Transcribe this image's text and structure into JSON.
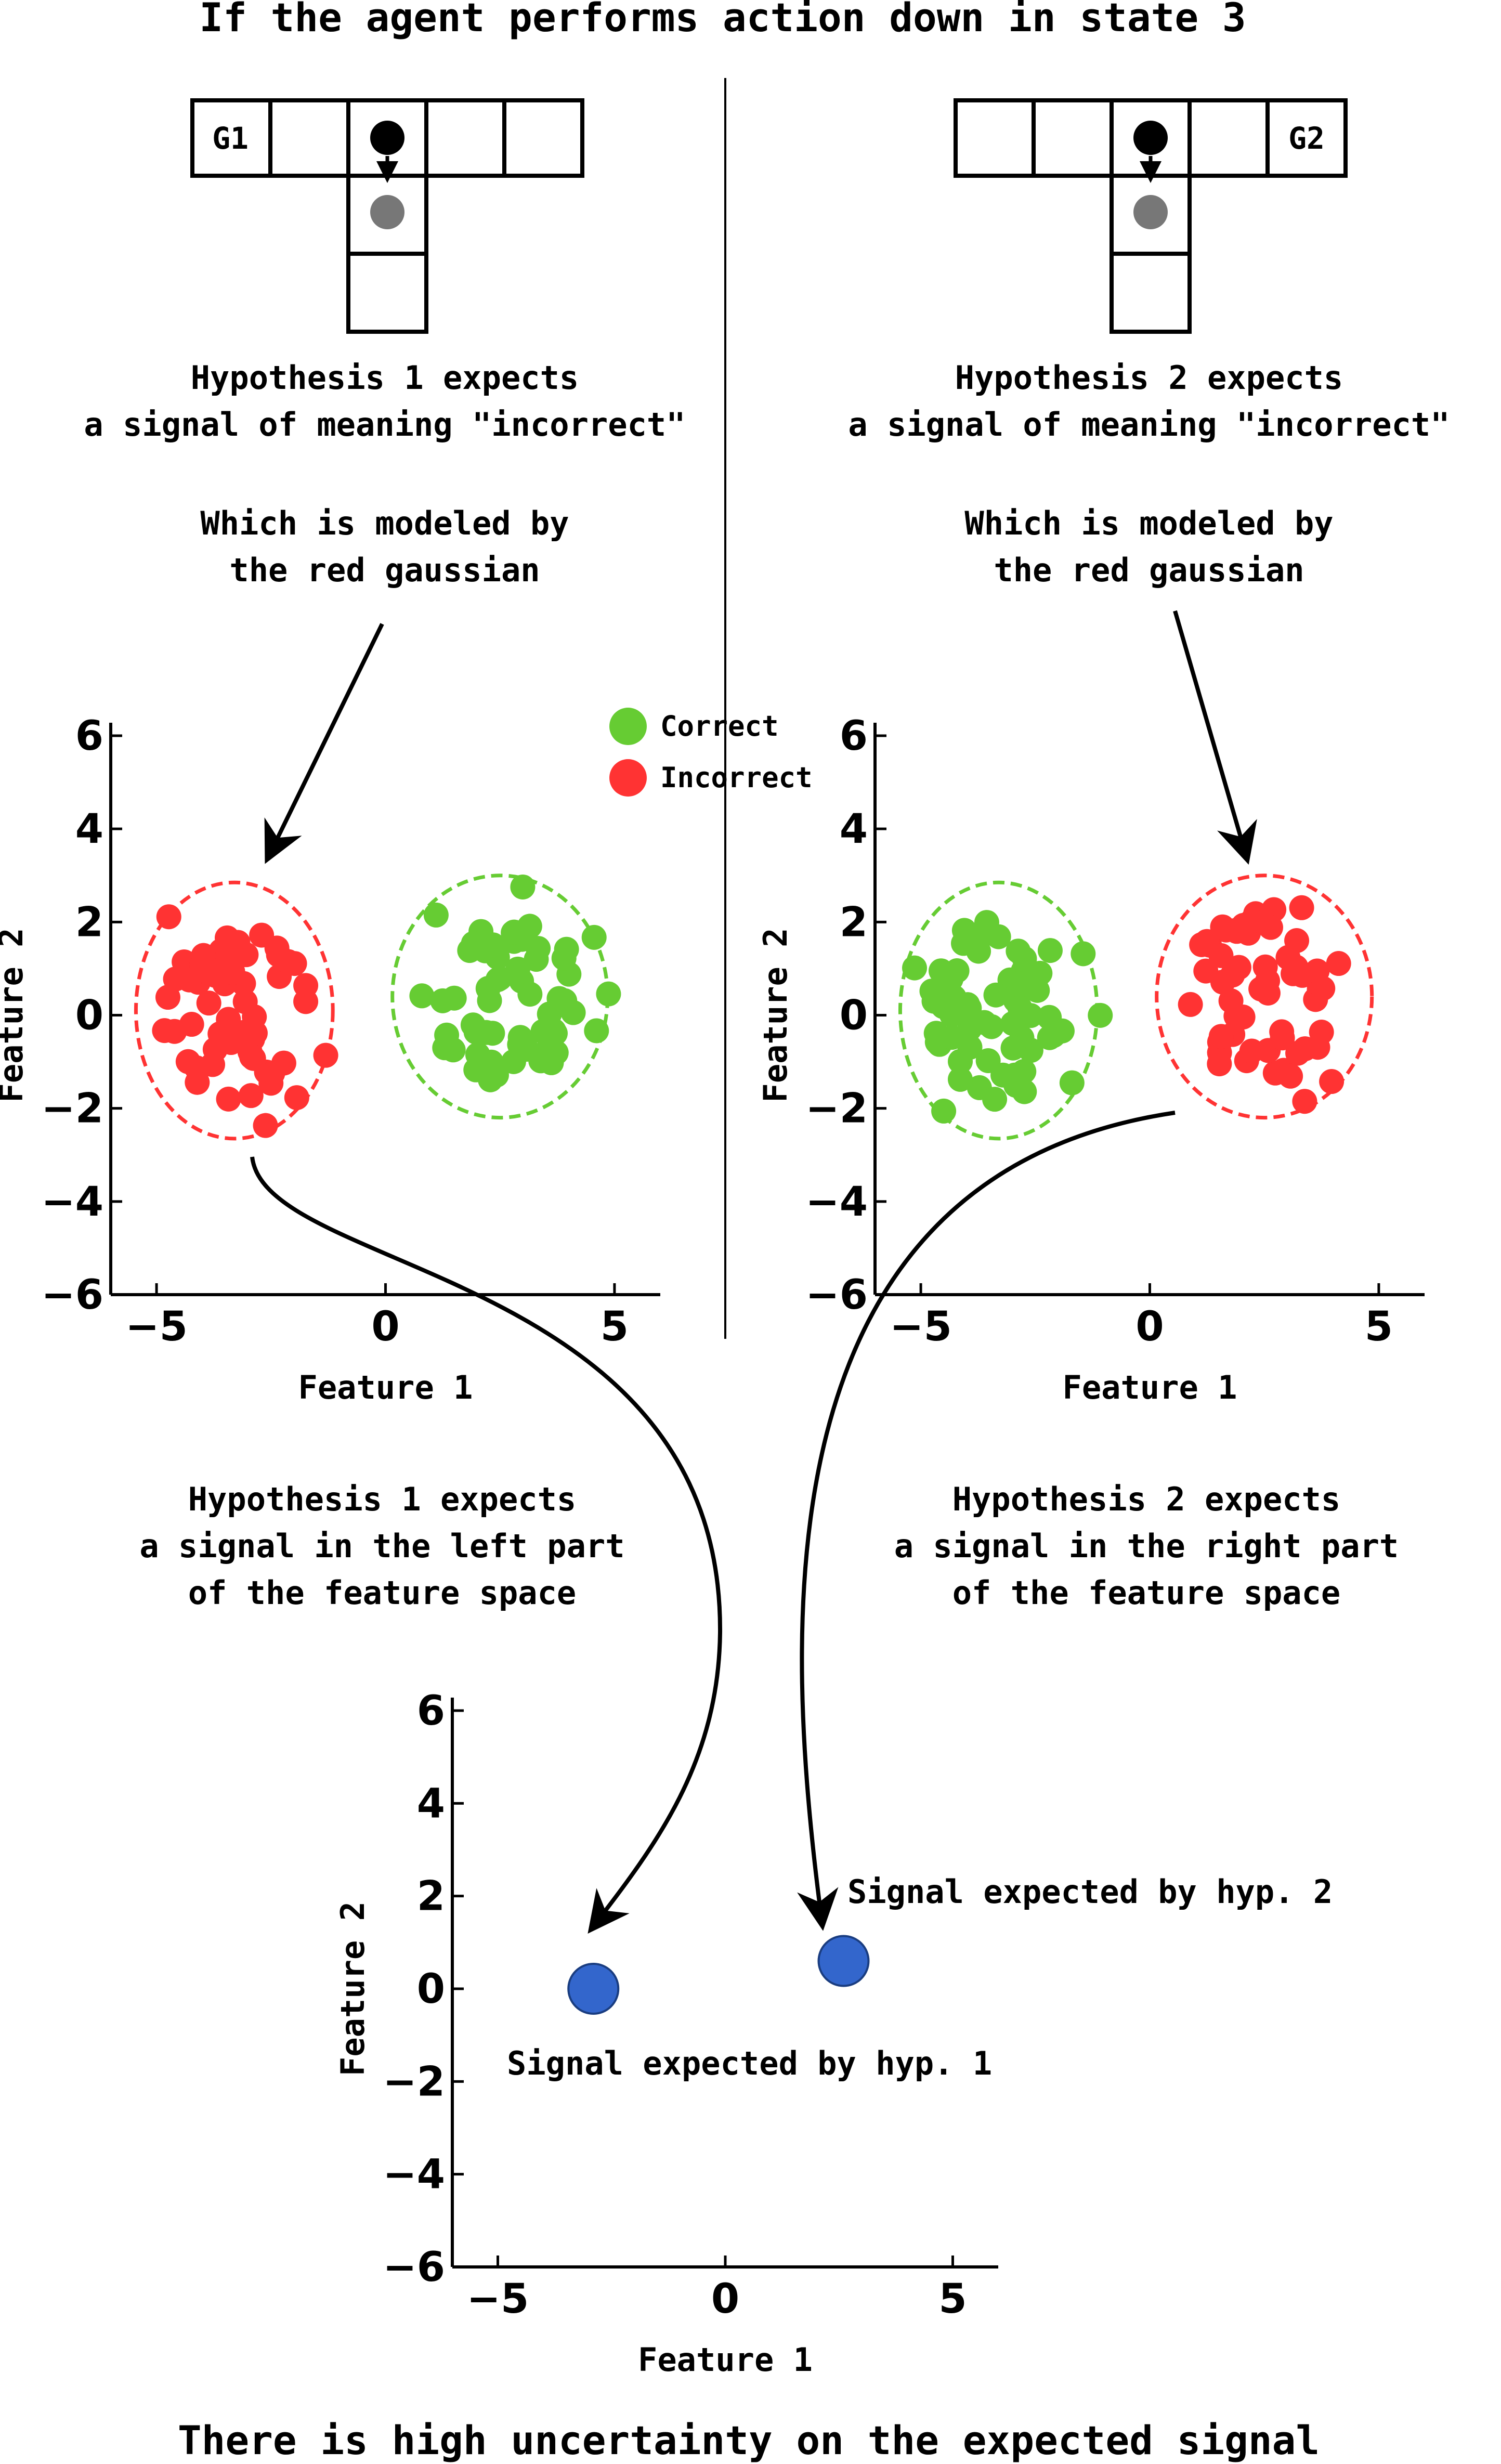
{
  "title": "If the agent performs action down in state 3",
  "conclusion": "There is high uncertainty on the expected signal",
  "colors": {
    "correct": "#66cc33",
    "incorrect": "#ff3333",
    "signal": "#3366cc",
    "agent": "#000000",
    "next_state": "#777777"
  },
  "legend": {
    "correct": "Correct",
    "incorrect": "Incorrect"
  },
  "hypothesis_1": {
    "goal_label": "G1",
    "expects_line1": "Hypothesis 1 expects",
    "expects_line2": "a signal of meaning \"incorrect\"",
    "model_line1": "Which is modeled by",
    "model_line2": "the red gaussian",
    "region_line1": "Hypothesis 1 expects",
    "region_line2": "a signal in the left part",
    "region_line3": "of the feature space"
  },
  "hypothesis_2": {
    "goal_label": "G2",
    "expects_line1": "Hypothesis 2 expects",
    "expects_line2": "a signal of meaning \"incorrect\"",
    "model_line1": "Which is modeled by",
    "model_line2": "the red gaussian",
    "region_line1": "Hypothesis 2 expects",
    "region_line2": "a signal in the right part",
    "region_line3": "of the feature space"
  },
  "signal_labels": {
    "hyp1": "Signal expected by hyp. 1",
    "hyp2": "Signal expected by hyp. 2"
  },
  "chart_data": [
    {
      "type": "scatter",
      "xlabel": "Feature 1",
      "ylabel": "Feature 2",
      "xlim": [
        -6,
        6
      ],
      "ylim": [
        -6,
        6
      ],
      "x_ticks": [
        "−5",
        "0",
        "5"
      ],
      "y_ticks": [
        "6",
        "4",
        "2",
        "0",
        "−2",
        "−4",
        "−6"
      ],
      "series": [
        {
          "name": "Incorrect",
          "color": "#ff3333",
          "ellipse": {
            "cx": -3.3,
            "cy": 0.1,
            "rx": 2.15,
            "ry": 2.75
          }
        },
        {
          "name": "Correct",
          "color": "#66cc33",
          "ellipse": {
            "cx": 2.5,
            "cy": 0.4,
            "rx": 2.35,
            "ry": 2.6
          }
        }
      ]
    },
    {
      "type": "scatter",
      "xlabel": "Feature 1",
      "ylabel": "Feature 2",
      "xlim": [
        -6,
        6
      ],
      "ylim": [
        -6,
        6
      ],
      "x_ticks": [
        "−5",
        "0",
        "5"
      ],
      "y_ticks": [
        "6",
        "4",
        "2",
        "0",
        "−2",
        "−4",
        "−6"
      ],
      "series": [
        {
          "name": "Correct",
          "color": "#66cc33",
          "ellipse": {
            "cx": -3.3,
            "cy": 0.1,
            "rx": 2.15,
            "ry": 2.75
          }
        },
        {
          "name": "Incorrect",
          "color": "#ff3333",
          "ellipse": {
            "cx": 2.5,
            "cy": 0.4,
            "rx": 2.35,
            "ry": 2.6
          }
        }
      ]
    },
    {
      "type": "scatter",
      "xlabel": "Feature 1",
      "ylabel": "Feature 2",
      "xlim": [
        -6,
        6
      ],
      "ylim": [
        -6,
        6
      ],
      "x_ticks": [
        "−5",
        "0",
        "5"
      ],
      "y_ticks": [
        "6",
        "4",
        "2",
        "0",
        "−2",
        "−4",
        "−6"
      ],
      "series": [
        {
          "name": "Signal expected by hyp. 1",
          "color": "#3366cc",
          "points": [
            [
              -2.9,
              0.0
            ]
          ]
        },
        {
          "name": "Signal expected by hyp. 2",
          "color": "#3366cc",
          "points": [
            [
              2.6,
              0.6
            ]
          ]
        }
      ]
    }
  ]
}
